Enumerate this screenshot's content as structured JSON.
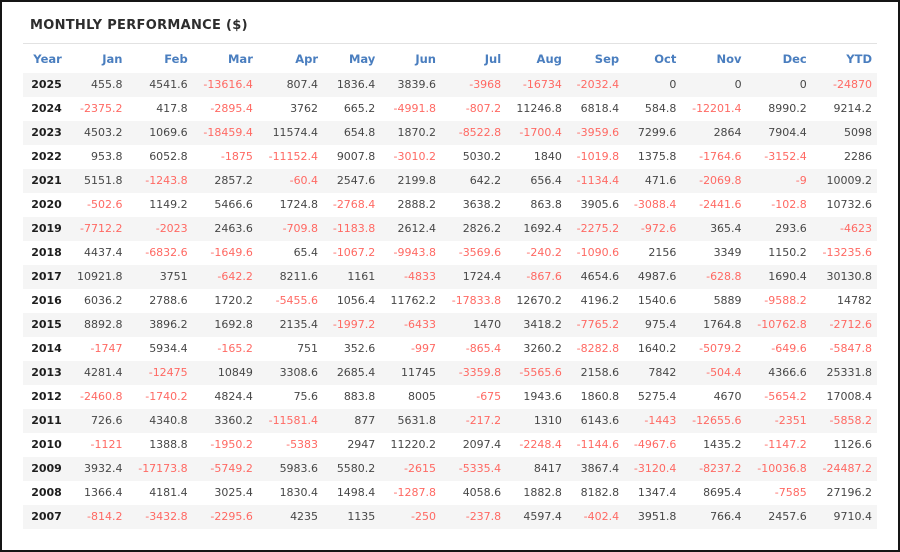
{
  "title": "MONTHLY PERFORMANCE ($)",
  "colors": {
    "header_blue": "#4a7ebf",
    "negative_red": "#ff6963",
    "positive_text": "#474747",
    "year_text": "#1e1e1e",
    "row_stripe": "#f5f5f5",
    "divider": "#e2e2e2",
    "outer_border": "#151515"
  },
  "chart_data": {
    "type": "table",
    "title": "MONTHLY PERFORMANCE ($)",
    "columns": [
      "Year",
      "Jan",
      "Feb",
      "Mar",
      "Apr",
      "May",
      "Jun",
      "Jul",
      "Aug",
      "Sep",
      "Oct",
      "Nov",
      "Dec",
      "YTD"
    ],
    "rows": [
      {
        "year": "2025",
        "values": [
          455.8,
          4541.6,
          -13616.4,
          807.4,
          1836.4,
          3839.6,
          -3968,
          -16734,
          -2032.4,
          0,
          0,
          0,
          -24870
        ]
      },
      {
        "year": "2024",
        "values": [
          -2375.2,
          417.8,
          -2895.4,
          3762,
          665.2,
          -4991.8,
          -807.2,
          11246.8,
          6818.4,
          584.8,
          -12201.4,
          8990.2,
          9214.2
        ]
      },
      {
        "year": "2023",
        "values": [
          4503.2,
          1069.6,
          -18459.4,
          11574.4,
          654.8,
          1870.2,
          -8522.8,
          -1700.4,
          -3959.6,
          7299.6,
          2864,
          7904.4,
          5098
        ]
      },
      {
        "year": "2022",
        "values": [
          953.8,
          6052.8,
          -1875,
          -11152.4,
          9007.8,
          -3010.2,
          5030.2,
          1840,
          -1019.8,
          1375.8,
          -1764.6,
          -3152.4,
          2286
        ]
      },
      {
        "year": "2021",
        "values": [
          5151.8,
          -1243.8,
          2857.2,
          -60.4,
          2547.6,
          2199.8,
          642.2,
          656.4,
          -1134.4,
          471.6,
          -2069.8,
          -9,
          10009.2
        ]
      },
      {
        "year": "2020",
        "values": [
          -502.6,
          1149.2,
          5466.6,
          1724.8,
          -2768.4,
          2888.2,
          3638.2,
          863.8,
          3905.6,
          -3088.4,
          -2441.6,
          -102.8,
          10732.6
        ]
      },
      {
        "year": "2019",
        "values": [
          -7712.2,
          -2023,
          2463.6,
          -709.8,
          -1183.8,
          2612.4,
          2826.2,
          1692.4,
          -2275.2,
          -972.6,
          365.4,
          293.6,
          -4623
        ]
      },
      {
        "year": "2018",
        "values": [
          4437.4,
          -6832.6,
          -1649.6,
          65.4,
          -1067.2,
          -9943.8,
          -3569.6,
          -240.2,
          -1090.6,
          2156,
          3349,
          1150.2,
          -13235.6
        ]
      },
      {
        "year": "2017",
        "values": [
          10921.8,
          3751,
          -642.2,
          8211.6,
          1161,
          -4833,
          1724.4,
          -867.6,
          4654.6,
          4987.6,
          -628.8,
          1690.4,
          30130.8
        ]
      },
      {
        "year": "2016",
        "values": [
          6036.2,
          2788.6,
          1720.2,
          -5455.6,
          1056.4,
          11762.2,
          -17833.8,
          12670.2,
          4196.2,
          1540.6,
          5889,
          -9588.2,
          14782
        ]
      },
      {
        "year": "2015",
        "values": [
          8892.8,
          3896.2,
          1692.8,
          2135.4,
          -1997.2,
          -6433,
          1470,
          3418.2,
          -7765.2,
          975.4,
          1764.8,
          -10762.8,
          -2712.6
        ]
      },
      {
        "year": "2014",
        "values": [
          -1747,
          5934.4,
          -165.2,
          751,
          352.6,
          -997,
          -865.4,
          3260.2,
          -8282.8,
          1640.2,
          -5079.2,
          -649.6,
          -5847.8
        ]
      },
      {
        "year": "2013",
        "values": [
          4281.4,
          -12475,
          10849,
          3308.6,
          2685.4,
          11745,
          -3359.8,
          -5565.6,
          2158.6,
          7842,
          -504.4,
          4366.6,
          25331.8
        ]
      },
      {
        "year": "2012",
        "values": [
          -2460.8,
          -1740.2,
          4824.4,
          75.6,
          883.8,
          8005,
          -675,
          1943.6,
          1860.8,
          5275.4,
          4670,
          -5654.2,
          17008.4
        ]
      },
      {
        "year": "2011",
        "values": [
          726.6,
          4340.8,
          3360.2,
          -11581.4,
          877,
          5631.8,
          -217.2,
          1310,
          6143.6,
          -1443,
          -12655.6,
          -2351,
          -5858.2
        ]
      },
      {
        "year": "2010",
        "values": [
          -1121,
          1388.8,
          -1950.2,
          -5383,
          2947,
          11220.2,
          2097.4,
          -2248.4,
          -1144.6,
          -4967.6,
          1435.2,
          -1147.2,
          1126.6
        ]
      },
      {
        "year": "2009",
        "values": [
          3932.4,
          -17173.8,
          -5749.2,
          5983.6,
          5580.2,
          -2615,
          -5335.4,
          8417,
          3867.4,
          -3120.4,
          -8237.2,
          -10036.8,
          -24487.2
        ]
      },
      {
        "year": "2008",
        "values": [
          1366.4,
          4181.4,
          3025.4,
          1830.4,
          1498.4,
          -1287.8,
          4058.6,
          1882.8,
          8182.8,
          1347.4,
          8695.4,
          -7585,
          27196.2
        ]
      },
      {
        "year": "2007",
        "values": [
          -814.2,
          -3432.8,
          -2295.6,
          4235,
          1135,
          -250,
          -237.8,
          4597.4,
          -402.4,
          3951.8,
          766.4,
          2457.6,
          9710.4
        ]
      }
    ]
  }
}
